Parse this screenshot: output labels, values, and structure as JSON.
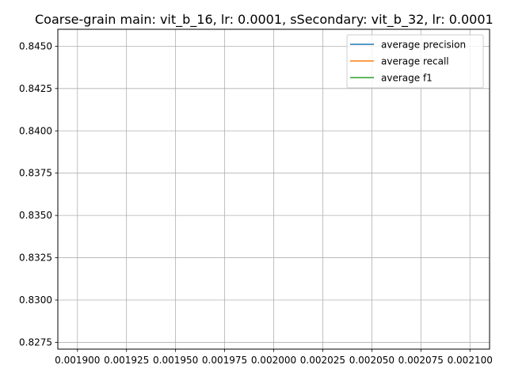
{
  "chart_data": {
    "type": "line",
    "title": "Coarse-grain main: vit_b_16, lr: 0.0001, sSecondary: vit_b_32, lr: 0.0001",
    "xlabel": "",
    "ylabel": "",
    "xlim": [
      0.00189,
      0.00211
    ],
    "ylim": [
      0.8271,
      0.846
    ],
    "x_ticks": [
      "0.001900",
      "0.001925",
      "0.001950",
      "0.001975",
      "0.002000",
      "0.002025",
      "0.002050",
      "0.002075",
      "0.002100"
    ],
    "x_tick_values": [
      0.0019,
      0.001925,
      0.00195,
      0.001975,
      0.002,
      0.002025,
      0.00205,
      0.002075,
      0.0021
    ],
    "y_ticks": [
      "0.8275",
      "0.8300",
      "0.8325",
      "0.8350",
      "0.8375",
      "0.8400",
      "0.8425",
      "0.8450"
    ],
    "y_tick_values": [
      0.8275,
      0.83,
      0.8325,
      0.835,
      0.8375,
      0.84,
      0.8425,
      0.845
    ],
    "grid": true,
    "legend_position": "top-right",
    "series": [
      {
        "name": "average precision",
        "color": "#1f77b4",
        "x": [],
        "y": []
      },
      {
        "name": "average recall",
        "color": "#ff7f0e",
        "x": [],
        "y": []
      },
      {
        "name": "average f1",
        "color": "#2ca02c",
        "x": [],
        "y": []
      }
    ]
  }
}
